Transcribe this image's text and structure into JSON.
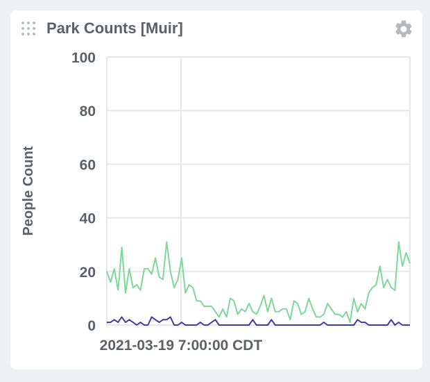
{
  "panel": {
    "title": "Park Counts [Muir]",
    "drag_icon": "drag-handle-icon",
    "settings_icon": "gear-icon"
  },
  "chart_data": {
    "type": "line",
    "ylabel": "People Count",
    "ylim": [
      0,
      100
    ],
    "yticks": [
      0,
      20,
      40,
      60,
      80,
      100
    ],
    "xtick_label": "2021-03-19 7:00:00 CDT",
    "grid": true,
    "series": [
      {
        "color": "#7dd898",
        "values": [
          20,
          16,
          21,
          13,
          29,
          12,
          21,
          14,
          15,
          13,
          21,
          21,
          19,
          25,
          18,
          17,
          31,
          20,
          14,
          17,
          25,
          12,
          15,
          14,
          9,
          9,
          7,
          7,
          7,
          5,
          3,
          6,
          3,
          10,
          9,
          4,
          6,
          5,
          8,
          5,
          4,
          7,
          11,
          5,
          10,
          5,
          5,
          6,
          6,
          2,
          9,
          8,
          4,
          5,
          10,
          6,
          3,
          3,
          4,
          8,
          6,
          4,
          4,
          3,
          5,
          1,
          10,
          5,
          8,
          6,
          12,
          14,
          15,
          22,
          14,
          17,
          14,
          13,
          31,
          22,
          27,
          23
        ]
      },
      {
        "color": "#3e3aa6",
        "values": [
          1,
          1,
          2,
          1,
          3,
          1,
          2,
          1,
          0,
          1,
          0,
          0,
          3,
          2,
          1,
          2,
          2,
          3,
          0,
          0,
          1,
          0,
          0,
          0,
          0,
          1,
          0,
          0,
          1,
          2,
          0,
          0,
          0,
          0,
          0,
          0,
          0,
          0,
          0,
          2,
          0,
          0,
          0,
          0,
          2,
          0,
          0,
          0,
          0,
          0,
          0,
          0,
          0,
          0,
          0,
          0,
          0,
          0,
          1,
          0,
          0,
          0,
          0,
          0,
          0,
          0,
          0,
          2,
          1,
          1,
          0,
          0,
          0,
          0,
          0,
          0,
          2,
          0,
          1,
          0,
          0,
          0
        ]
      }
    ]
  }
}
